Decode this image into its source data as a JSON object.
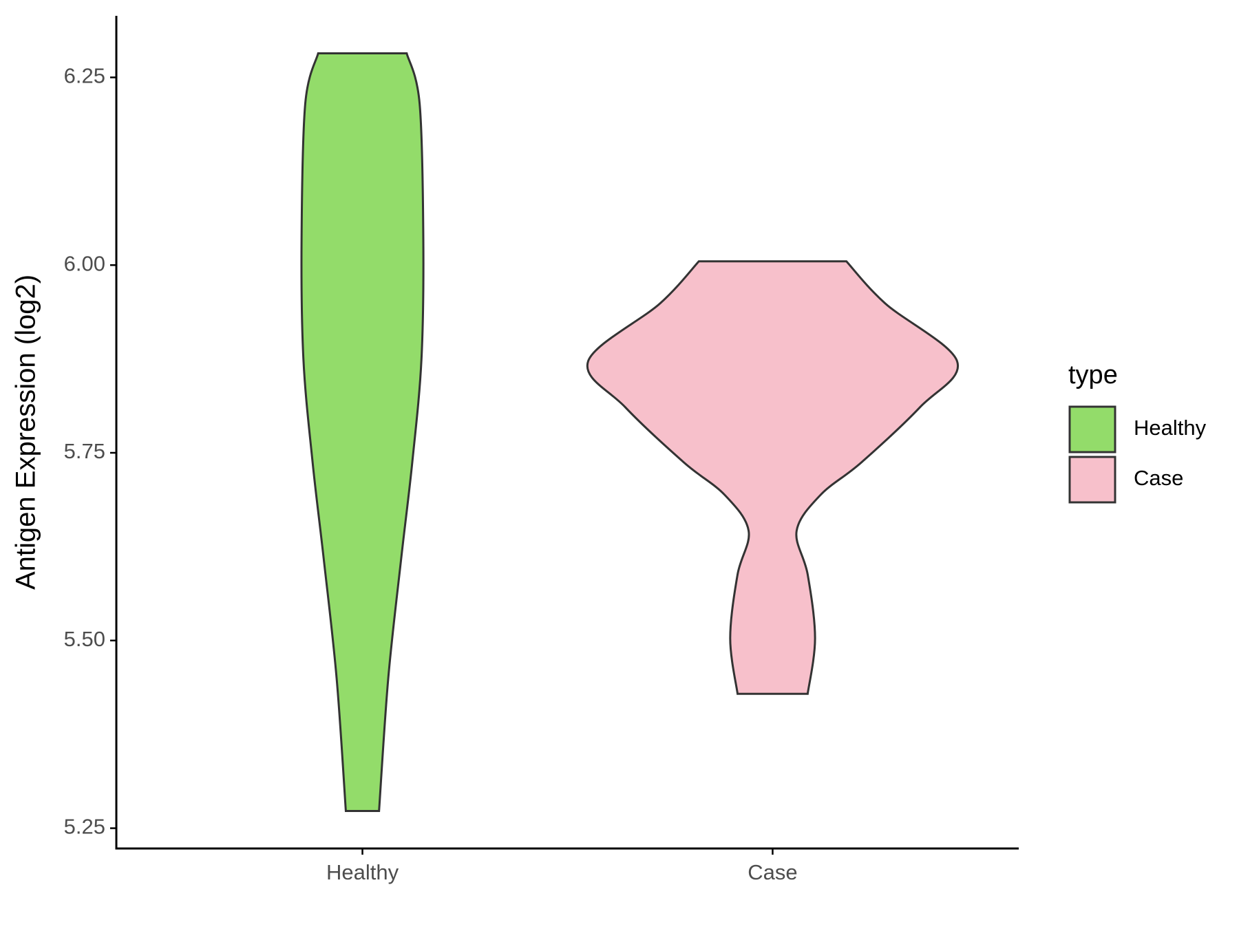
{
  "chart_data": {
    "type": "violin",
    "y_label": "Antigen Expression (log2)",
    "categories": [
      "Healthy",
      "Case"
    ],
    "legend_title": "type",
    "series": [
      {
        "name": "Healthy",
        "color": "#93dc6a",
        "y": [
          6.282,
          6.215,
          6.034,
          5.875,
          5.737,
          5.609,
          5.45,
          5.273
        ],
        "density": [
          0.24,
          0.31,
          0.33,
          0.32,
          0.27,
          0.21,
          0.14,
          0.09
        ]
      },
      {
        "name": "Case",
        "color": "#f7c0cb",
        "y": [
          6.005,
          5.949,
          5.872,
          5.811,
          5.737,
          5.694,
          5.646,
          5.588,
          5.503,
          5.429
        ],
        "density": [
          0.4,
          0.61,
          1.0,
          0.8,
          0.48,
          0.26,
          0.13,
          0.19,
          0.23,
          0.19
        ]
      }
    ],
    "ylim": [
      5.223,
      6.332
    ],
    "yticks": [
      {
        "value": 5.25,
        "label": "5.25"
      },
      {
        "value": 5.5,
        "label": "5.50"
      },
      {
        "value": 5.75,
        "label": "5.75"
      },
      {
        "value": 6.0,
        "label": "6.00"
      },
      {
        "value": 6.25,
        "label": "6.25"
      }
    ],
    "grid": false,
    "legend_position": "right"
  }
}
